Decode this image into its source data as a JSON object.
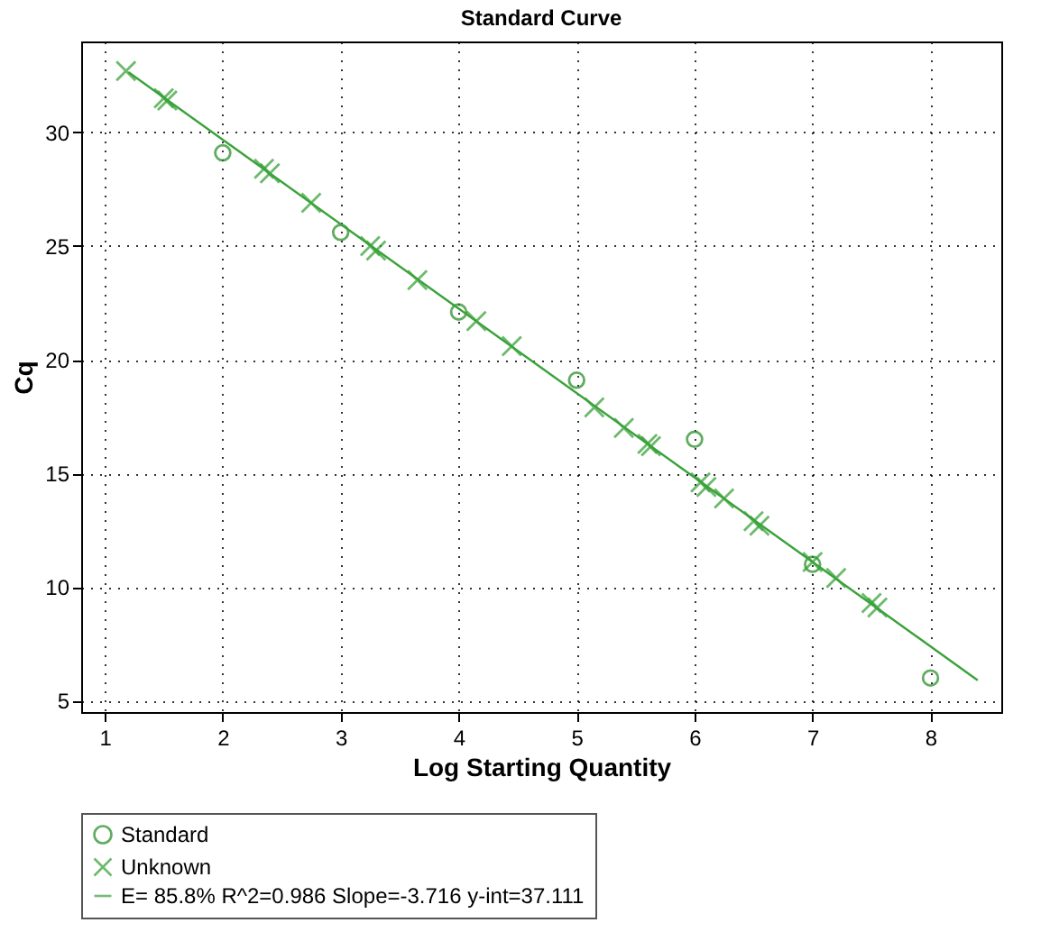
{
  "chart_data": {
    "type": "scatter",
    "title": "Standard Curve",
    "xlabel": "Log Starting Quantity",
    "ylabel": "Cq",
    "xlim": [
      0.8,
      8.6
    ],
    "ylim": [
      4.5,
      34
    ],
    "xticks": [
      1,
      2,
      3,
      4,
      5,
      6,
      7,
      8
    ],
    "yticks": [
      5,
      10,
      15,
      20,
      25,
      30
    ],
    "grid": true,
    "legend": "bottom",
    "series": [
      {
        "name": "Standard",
        "color": "#1f8a1f",
        "marker": "circle",
        "x": [
          2,
          3,
          4,
          5,
          6,
          7,
          8
        ],
        "values": [
          29.1,
          25.6,
          22.1,
          19.1,
          16.5,
          11.0,
          6.0
        ]
      },
      {
        "name": "Unknown",
        "color": "#2e9e2e",
        "marker": "cross",
        "x": [
          1.18,
          1.5,
          1.53,
          2.35,
          2.4,
          2.75,
          3.25,
          3.3,
          3.65,
          4.15,
          4.45,
          5.15,
          5.4,
          5.6,
          5.63,
          6.05,
          6.1,
          6.25,
          6.5,
          6.55,
          7.0,
          7.2,
          7.5,
          7.55
        ],
        "values": [
          32.7,
          31.5,
          31.4,
          28.4,
          28.2,
          26.9,
          25.0,
          24.8,
          23.5,
          21.7,
          20.6,
          17.9,
          17.0,
          16.3,
          16.2,
          14.6,
          14.4,
          13.9,
          12.9,
          12.7,
          11.1,
          10.4,
          9.3,
          9.1
        ]
      },
      {
        "name": "E= 85.8% R^2=0.986 Slope=-3.716 y-int=37.111",
        "type": "line",
        "color": "#3aa23a",
        "marker": "none",
        "x": [
          1.2,
          8.4
        ],
        "values": [
          32.65,
          5.9
        ]
      }
    ]
  }
}
